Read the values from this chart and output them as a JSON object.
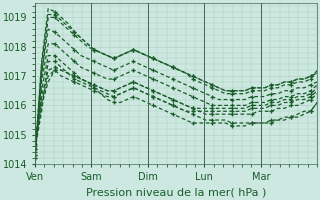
{
  "background_color": "#cce8e0",
  "grid_color": "#aaccbb",
  "line_color": "#1a5c2a",
  "xlabel": "Pression niveau de la mer( hPa )",
  "ylim": [
    1014,
    1019.5
  ],
  "yticks": [
    1014,
    1015,
    1016,
    1017,
    1018,
    1019
  ],
  "day_labels": [
    "Ven",
    "Sam",
    "Dim",
    "Lun",
    "Mar"
  ],
  "day_positions": [
    0,
    24,
    48,
    72,
    96
  ],
  "total_hours": 120,
  "series": [
    [
      1014.5,
      1016.0,
      1016.8,
      1017.2,
      1017.2,
      1017.1,
      1017.0,
      1016.9,
      1016.8,
      1016.6,
      1016.4,
      1016.2,
      1016.1,
      1016.1,
      1016.2,
      1016.3,
      1016.2,
      1016.1,
      1016.0,
      1015.9,
      1015.8,
      1015.7,
      1015.6,
      1015.5,
      1015.4,
      1015.4,
      1015.4,
      1015.4,
      1015.4,
      1015.4,
      1015.3,
      1015.3,
      1015.3,
      1015.4,
      1015.4,
      1015.4,
      1015.5,
      1015.5,
      1015.6,
      1015.6,
      1015.7,
      1015.8,
      1015.8,
      1016.1
    ],
    [
      1014.6,
      1016.1,
      1017.0,
      1017.2,
      1017.0,
      1016.9,
      1016.8,
      1016.7,
      1016.6,
      1016.5,
      1016.4,
      1016.3,
      1016.3,
      1016.4,
      1016.5,
      1016.6,
      1016.5,
      1016.4,
      1016.3,
      1016.2,
      1016.1,
      1016.0,
      1015.9,
      1015.8,
      1015.7,
      1015.6,
      1015.5,
      1015.5,
      1015.5,
      1015.5,
      1015.4,
      1015.4,
      1015.4,
      1015.4,
      1015.4,
      1015.4,
      1015.4,
      1015.5,
      1015.5,
      1015.6,
      1015.6,
      1015.7,
      1015.8,
      1016.1
    ],
    [
      1014.7,
      1016.3,
      1017.2,
      1017.3,
      1017.2,
      1017.1,
      1017.0,
      1016.9,
      1016.8,
      1016.7,
      1016.6,
      1016.5,
      1016.5,
      1016.6,
      1016.7,
      1016.8,
      1016.7,
      1016.6,
      1016.5,
      1016.4,
      1016.3,
      1016.2,
      1016.1,
      1016.0,
      1015.9,
      1015.8,
      1015.7,
      1015.7,
      1015.7,
      1015.7,
      1015.7,
      1015.7,
      1015.7,
      1015.7,
      1015.8,
      1015.8,
      1015.8,
      1015.9,
      1015.9,
      1016.0,
      1016.0,
      1016.1,
      1016.2,
      1016.4
    ],
    [
      1014.5,
      1015.8,
      1017.5,
      1017.5,
      1017.3,
      1017.1,
      1016.9,
      1016.8,
      1016.7,
      1016.6,
      1016.5,
      1016.4,
      1016.3,
      1016.4,
      1016.5,
      1016.6,
      1016.5,
      1016.4,
      1016.3,
      1016.2,
      1016.1,
      1016.0,
      1015.9,
      1015.8,
      1015.8,
      1015.8,
      1015.8,
      1015.8,
      1015.8,
      1015.8,
      1015.8,
      1015.8,
      1015.8,
      1015.9,
      1015.9,
      1015.9,
      1016.0,
      1016.0,
      1016.1,
      1016.1,
      1016.2,
      1016.2,
      1016.3,
      1016.5
    ],
    [
      1014.5,
      1016.5,
      1017.7,
      1017.7,
      1017.5,
      1017.3,
      1017.1,
      1016.9,
      1016.8,
      1016.7,
      1016.6,
      1016.5,
      1016.5,
      1016.6,
      1016.7,
      1016.8,
      1016.7,
      1016.6,
      1016.5,
      1016.4,
      1016.3,
      1016.2,
      1016.1,
      1016.0,
      1015.9,
      1015.9,
      1015.9,
      1015.9,
      1015.9,
      1015.9,
      1015.9,
      1015.9,
      1015.9,
      1016.0,
      1016.0,
      1016.0,
      1016.1,
      1016.1,
      1016.2,
      1016.2,
      1016.3,
      1016.3,
      1016.4,
      1016.6
    ],
    [
      1014.4,
      1016.8,
      1018.1,
      1018.1,
      1017.9,
      1017.7,
      1017.5,
      1017.3,
      1017.2,
      1017.1,
      1017.0,
      1016.9,
      1016.9,
      1017.0,
      1017.1,
      1017.2,
      1017.1,
      1017.0,
      1016.9,
      1016.8,
      1016.7,
      1016.6,
      1016.5,
      1016.4,
      1016.3,
      1016.2,
      1016.1,
      1016.0,
      1016.0,
      1016.0,
      1016.0,
      1016.0,
      1016.0,
      1016.1,
      1016.1,
      1016.1,
      1016.2,
      1016.2,
      1016.3,
      1016.3,
      1016.4,
      1016.4,
      1016.5,
      1016.7
    ],
    [
      1014.3,
      1017.1,
      1018.6,
      1018.5,
      1018.3,
      1018.1,
      1017.9,
      1017.7,
      1017.6,
      1017.5,
      1017.4,
      1017.3,
      1017.2,
      1017.3,
      1017.4,
      1017.5,
      1017.4,
      1017.3,
      1017.2,
      1017.1,
      1017.0,
      1016.9,
      1016.8,
      1016.7,
      1016.6,
      1016.5,
      1016.4,
      1016.3,
      1016.2,
      1016.2,
      1016.2,
      1016.2,
      1016.2,
      1016.3,
      1016.3,
      1016.3,
      1016.4,
      1016.4,
      1016.5,
      1016.5,
      1016.6,
      1016.6,
      1016.7,
      1016.8
    ],
    [
      1014.2,
      1017.0,
      1019.0,
      1019.0,
      1018.8,
      1018.6,
      1018.4,
      1018.2,
      1018.0,
      1017.9,
      1017.8,
      1017.7,
      1017.6,
      1017.7,
      1017.8,
      1017.9,
      1017.8,
      1017.7,
      1017.6,
      1017.5,
      1017.4,
      1017.3,
      1017.2,
      1017.1,
      1017.0,
      1016.9,
      1016.8,
      1016.7,
      1016.6,
      1016.5,
      1016.5,
      1016.5,
      1016.5,
      1016.6,
      1016.6,
      1016.6,
      1016.7,
      1016.7,
      1016.8,
      1016.8,
      1016.9,
      1016.9,
      1017.0,
      1017.1
    ],
    [
      1014.2,
      1017.4,
      1019.1,
      1019.1,
      1018.9,
      1018.7,
      1018.5,
      1018.3,
      1018.1,
      1017.9,
      1017.8,
      1017.7,
      1017.6,
      1017.7,
      1017.8,
      1017.9,
      1017.8,
      1017.7,
      1017.6,
      1017.5,
      1017.4,
      1017.3,
      1017.2,
      1017.1,
      1017.0,
      1016.9,
      1016.8,
      1016.7,
      1016.6,
      1016.5,
      1016.5,
      1016.5,
      1016.5,
      1016.6,
      1016.6,
      1016.6,
      1016.7,
      1016.7,
      1016.8,
      1016.8,
      1016.9,
      1016.9,
      1017.0,
      1017.1
    ],
    [
      1014.3,
      1017.5,
      1019.3,
      1019.2,
      1019.0,
      1018.8,
      1018.5,
      1018.3,
      1018.1,
      1017.9,
      1017.8,
      1017.7,
      1017.6,
      1017.7,
      1017.8,
      1017.9,
      1017.8,
      1017.7,
      1017.6,
      1017.5,
      1017.4,
      1017.3,
      1017.2,
      1017.1,
      1016.9,
      1016.8,
      1016.7,
      1016.6,
      1016.5,
      1016.4,
      1016.4,
      1016.4,
      1016.4,
      1016.5,
      1016.5,
      1016.5,
      1016.6,
      1016.6,
      1016.7,
      1016.7,
      1016.8,
      1016.8,
      1016.9,
      1017.2
    ]
  ],
  "marker_every": 3,
  "marker_size": 3.5,
  "line_width": 0.9,
  "xlabel_fontsize": 8,
  "tick_fontsize": 7,
  "separator_color": "#446655"
}
